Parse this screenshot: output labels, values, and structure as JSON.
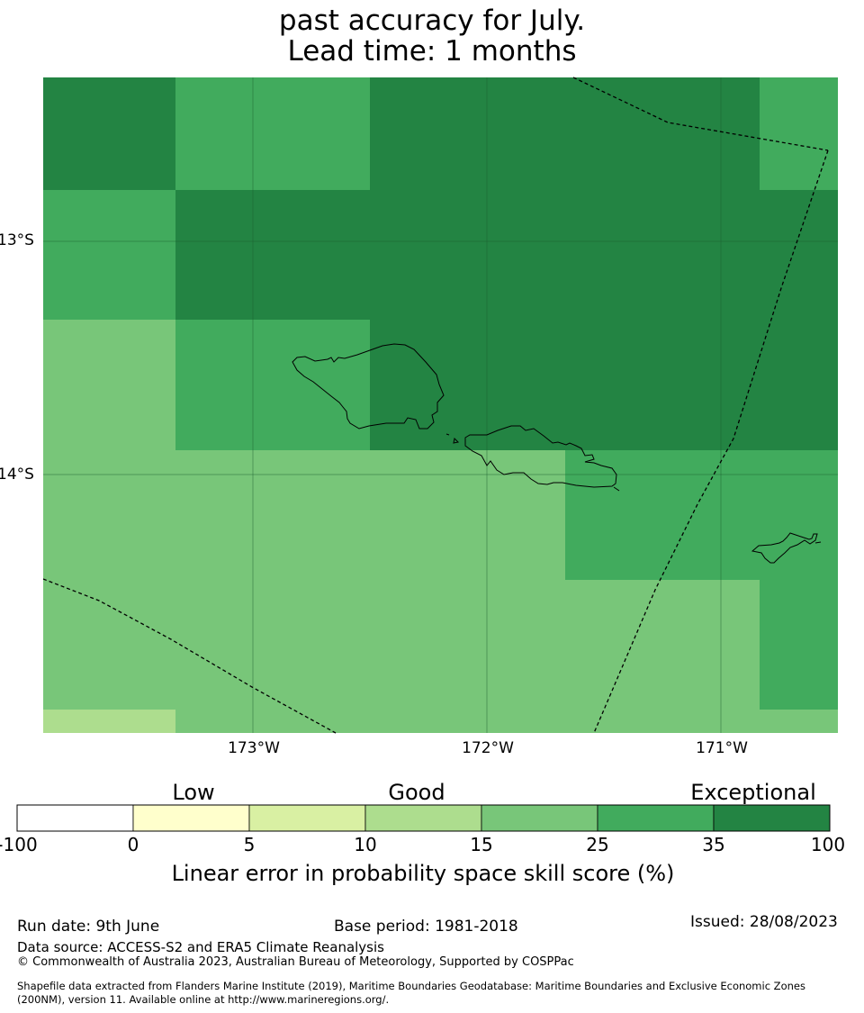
{
  "title": {
    "line1": "past accuracy for July.",
    "line2": "Lead time: 1 months"
  },
  "map": {
    "lat_labels": [
      "13°S",
      "14°S"
    ],
    "lon_labels": [
      "173°W",
      "172°W",
      "171°W"
    ],
    "colors": {
      "skill_15_25": "#78c679",
      "skill_25_35": "#41ab5d",
      "skill_35_100": "#238443",
      "skill_10_15": "#addd8e"
    }
  },
  "colorbar": {
    "categories": [
      "Low",
      "Good",
      "Exceptional"
    ],
    "ticks": [
      "-100",
      "0",
      "5",
      "10",
      "15",
      "25",
      "35",
      "100"
    ],
    "colors": [
      "#ffffff",
      "#ffffcc",
      "#d9f0a3",
      "#addd8e",
      "#78c679",
      "#41ab5d",
      "#238443"
    ],
    "label": "Linear error in probability space skill score (%)"
  },
  "footer": {
    "run_date": "Run date: 9th June",
    "base_period": "Base period: 1981-2018",
    "issued": "Issued: 28/08/2023",
    "data_source": "Data source: ACCESS-S2 and ERA5 Climate Reanalysis",
    "copyright": "© Commonwealth of Australia 2023, Australian Bureau of Meteorology, Supported by COSPPac",
    "shapefile_line1": "Shapefile data extracted from Flanders Marine Institute (2019), Maritime Boundaries Geodatabase: Maritime Boundaries and Exclusive Economic Zones",
    "shapefile_line2": "(200NM), version 11. Available online at http://www.marineregions.org/."
  }
}
